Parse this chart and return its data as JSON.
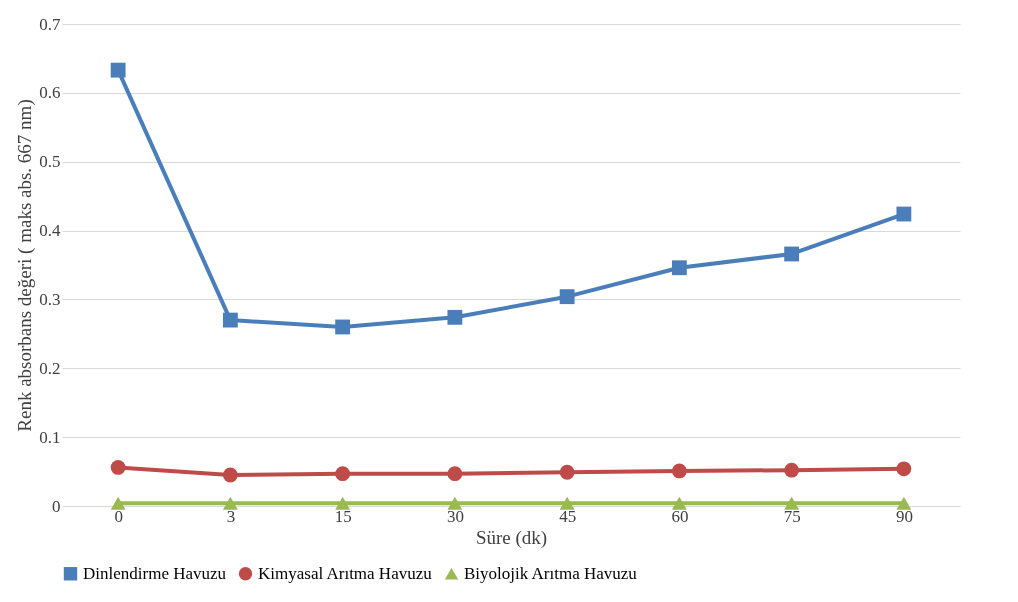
{
  "chart_data": {
    "type": "line",
    "xlabel": "Süre (dk)",
    "ylabel": "Renk absorbans değeri ( maks abs. 667 nm)",
    "categories": [
      "0",
      "3",
      "15",
      "30",
      "45",
      "60",
      "75",
      "90"
    ],
    "ylim": [
      0,
      0.7
    ],
    "yticks": [
      0,
      0.1,
      0.2,
      0.3,
      0.4,
      0.5,
      0.6,
      0.7
    ],
    "grid": "y",
    "legend": "bottom",
    "series": [
      {
        "name": "Dinlendirme Havuzu",
        "color": "#4a7ebb",
        "marker": "square",
        "values": [
          0.633,
          0.27,
          0.26,
          0.274,
          0.304,
          0.346,
          0.366,
          0.424
        ]
      },
      {
        "name": "Kimyasal Arıtma Havuzu",
        "color": "#be4b48",
        "marker": "circle",
        "values": [
          0.056,
          0.045,
          0.047,
          0.047,
          0.049,
          0.051,
          0.052,
          0.054
        ]
      },
      {
        "name": "Biyolojik Arıtma Havuzu",
        "color": "#98b954",
        "marker": "triangle",
        "values": [
          0.004,
          0.004,
          0.004,
          0.004,
          0.004,
          0.004,
          0.004,
          0.004
        ]
      }
    ]
  }
}
